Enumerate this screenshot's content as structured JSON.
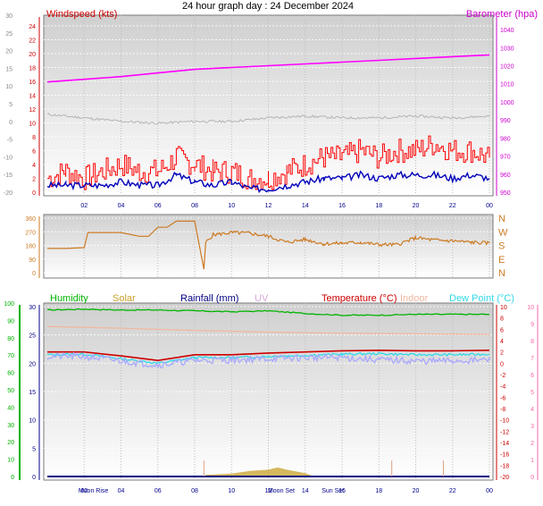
{
  "title": "24 hour graph day : 24 December 2024",
  "colors": {
    "windspeed": "#ff0000",
    "wind_avg": "#0000bb",
    "barometer": "#ff00ff",
    "grey_series": "#b4b4b4",
    "direction": "#cc7a22",
    "humidity": "#00b400",
    "solar": "#c8a028",
    "rainfall": "#000080",
    "uv": "#d8a8d8",
    "temperature": "#cc0000",
    "indoor": "#f0b8a0",
    "dewpoint": "#30d8e8",
    "blue_temp_series": "#a8a8ff"
  },
  "chart_data": [
    {
      "type": "line",
      "name": "wind",
      "left_axis": {
        "label": "Windspeed (kts)",
        "range": [
          0,
          24
        ],
        "ticks": [
          "0",
          "2",
          "4",
          "6",
          "8",
          "10",
          "12",
          "14",
          "16",
          "18",
          "20",
          "22",
          "24"
        ]
      },
      "outer_left_axis": {
        "range": [
          -20,
          30
        ],
        "ticks": [
          "-20",
          "-15",
          "-10",
          "-5",
          "0",
          "5",
          "10",
          "15",
          "20",
          "25",
          "30"
        ]
      },
      "right_axis": {
        "label": "Barometer (hpa)",
        "range": [
          950,
          1045
        ],
        "ticks": [
          "950",
          "960",
          "970",
          "980",
          "990",
          "1000",
          "1010",
          "1020",
          "1030",
          "1040"
        ]
      },
      "x_ticks": [
        "02",
        "04",
        "06",
        "08",
        "10",
        "12",
        "14",
        "16",
        "18",
        "20",
        "22",
        "00"
      ],
      "series": [
        {
          "color_key": "barometer",
          "x": [
            0,
            2,
            4,
            6,
            8,
            10,
            12,
            14,
            16,
            18,
            20,
            22,
            24
          ],
          "y": [
            1011,
            1012.5,
            1014,
            1016,
            1018,
            1019,
            1020,
            1021,
            1022,
            1023,
            1024,
            1025,
            1026
          ]
        },
        {
          "color_key": "windspeed",
          "x": [
            0,
            1,
            2,
            3,
            4,
            5,
            6,
            7,
            8,
            9,
            10,
            11,
            12,
            13,
            14,
            15,
            16,
            17,
            18,
            19,
            20,
            21,
            22,
            23,
            24
          ],
          "y": [
            2,
            3,
            2,
            3,
            4,
            3,
            3,
            5,
            4,
            3,
            3,
            2,
            2,
            3,
            4,
            5,
            5,
            6,
            5,
            6,
            6,
            7,
            6,
            6,
            5
          ]
        },
        {
          "color_key": "wind_avg",
          "x": [
            0,
            1,
            2,
            3,
            4,
            5,
            6,
            7,
            8,
            9,
            10,
            11,
            12,
            13,
            14,
            15,
            16,
            17,
            18,
            19,
            20,
            21,
            22,
            23,
            24
          ],
          "y": [
            1,
            1,
            1,
            1,
            1.5,
            1,
            1,
            2.5,
            1.5,
            1,
            1.5,
            0.5,
            0.5,
            1,
            1.5,
            2,
            2,
            2.5,
            2,
            2.5,
            2.5,
            2.5,
            2,
            2.5,
            2
          ]
        },
        {
          "color_key": "grey_series",
          "x": [
            0,
            2,
            4,
            6,
            8,
            10,
            12,
            14,
            16,
            18,
            20,
            22,
            24
          ],
          "y": [
            2,
            1,
            0,
            -0.5,
            0,
            0,
            1,
            1.5,
            1,
            1,
            1.5,
            1,
            1.5
          ]
        }
      ]
    },
    {
      "type": "line",
      "name": "direction",
      "left_axis": {
        "range": [
          0,
          360
        ],
        "ticks": [
          "0",
          "90",
          "180",
          "270",
          "360"
        ]
      },
      "right_axis": {
        "labels": [
          "N",
          "W",
          "S",
          "E",
          "N"
        ]
      },
      "series": [
        {
          "color_key": "direction",
          "x": [
            0,
            1,
            2,
            2.2,
            3,
            4,
            5,
            5.5,
            6,
            6.5,
            7,
            8,
            8.5,
            8.6,
            9,
            10,
            11,
            12,
            13,
            14,
            15,
            16,
            17,
            18,
            19,
            20,
            21,
            22,
            23,
            24
          ],
          "y": [
            160,
            160,
            165,
            265,
            265,
            265,
            240,
            240,
            300,
            300,
            340,
            340,
            25,
            200,
            250,
            265,
            260,
            240,
            200,
            220,
            190,
            195,
            200,
            185,
            185,
            230,
            215,
            210,
            200,
            195
          ]
        }
      ]
    },
    {
      "type": "line",
      "name": "conditions",
      "legend": [
        "Humidity",
        "Solar",
        "Rainfall (mm)",
        "UV",
        "Temperature (°C)",
        "Indoor",
        "Dew Point (°C)"
      ],
      "outer_left_axis": {
        "range": [
          0,
          100
        ],
        "ticks": [
          "0",
          "10",
          "20",
          "30",
          "40",
          "50",
          "60",
          "70",
          "80",
          "90",
          "100"
        ]
      },
      "left_axis": {
        "range": [
          0,
          30
        ],
        "ticks": [
          "0",
          "5",
          "10",
          "15",
          "20",
          "25",
          "30"
        ]
      },
      "right_axis": {
        "range": [
          -20,
          10
        ],
        "ticks": [
          "-20",
          "-18",
          "-16",
          "-14",
          "-12",
          "-10",
          "-8",
          "-6",
          "-4",
          "-2",
          "0",
          "2",
          "4",
          "6",
          "8",
          "10"
        ]
      },
      "outer_right_axis": {
        "range": [
          0,
          10
        ],
        "ticks": [
          "0",
          "1",
          "2",
          "3",
          "4",
          "5",
          "6",
          "7",
          "8",
          "9",
          "10"
        ]
      },
      "x_ticks": [
        "02",
        "04",
        "06",
        "08",
        "10",
        "12",
        "14",
        "16",
        "18",
        "20",
        "22",
        "00"
      ],
      "x_annotations": [
        {
          "text": "Moon Rise",
          "x": 2.5
        },
        {
          "text": "Moon Set",
          "x": 12.7
        },
        {
          "text": "Sun Set",
          "x": 15.5
        }
      ],
      "series": [
        {
          "color_key": "humidity",
          "axis": "outer_left",
          "x": [
            0,
            2,
            4,
            6,
            8,
            10,
            12,
            14,
            16,
            18,
            20,
            22,
            24
          ],
          "y": [
            96,
            96.5,
            96,
            96,
            95.5,
            95,
            95.5,
            94,
            93,
            93,
            93.5,
            93.5,
            93.5
          ]
        },
        {
          "color_key": "indoor",
          "axis": "right",
          "x": [
            0,
            4,
            8,
            12,
            16,
            20,
            24
          ],
          "y": [
            6.5,
            6.2,
            5.8,
            5.5,
            5.3,
            5.2,
            5.1
          ]
        },
        {
          "color_key": "temperature",
          "axis": "right",
          "x": [
            0,
            2,
            4,
            6,
            8,
            10,
            12,
            14,
            16,
            18,
            20,
            22,
            24
          ],
          "y": [
            2,
            2,
            1.3,
            0.5,
            1.5,
            1.5,
            1.8,
            2,
            2.2,
            2.3,
            2.2,
            2.2,
            2.3
          ]
        },
        {
          "color_key": "dewpoint",
          "axis": "right",
          "x": [
            0,
            2,
            4,
            6,
            8,
            10,
            12,
            14,
            16,
            18,
            20,
            22,
            24
          ],
          "y": [
            1.5,
            1.6,
            0.8,
            0,
            1,
            1,
            1.2,
            1.4,
            1.6,
            1.7,
            1.5,
            1.5,
            1.6
          ]
        },
        {
          "color_key": "blue_temp_series",
          "axis": "right",
          "x": [
            0,
            2,
            4,
            6,
            8,
            10,
            12,
            14,
            16,
            18,
            20,
            22,
            24
          ],
          "y": [
            1.2,
            1.2,
            0.4,
            -0.3,
            0.5,
            0.6,
            0.8,
            1,
            1,
            0.6,
            0.4,
            0.4,
            0.6
          ]
        },
        {
          "color_key": "solar",
          "axis": "left",
          "x": [
            8.6,
            10,
            11,
            12,
            12.5,
            13,
            14,
            14.5
          ],
          "y": [
            0.3,
            0.5,
            1,
            1.2,
            1.6,
            1.2,
            0.6,
            0
          ]
        },
        {
          "color_key": "rainfall",
          "axis": "left",
          "x": [
            0,
            6,
            10,
            14,
            18,
            24
          ],
          "y": [
            0,
            0,
            0,
            0,
            0,
            0
          ]
        }
      ]
    }
  ]
}
